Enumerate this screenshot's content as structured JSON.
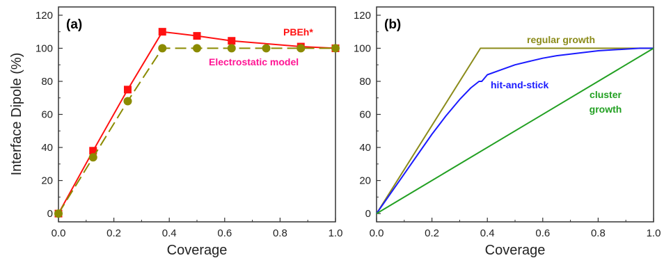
{
  "chart_data": [
    {
      "type": "line",
      "panel_label": "(a)",
      "xlabel": "Coverage",
      "ylabel": "Interface Dipole (%)",
      "xlim": [
        0,
        1
      ],
      "ylim": [
        -5,
        125
      ],
      "xticks": [
        "0.0",
        "0.2",
        "0.4",
        "0.6",
        "0.8",
        "1.0"
      ],
      "yticks": [
        "0",
        "20",
        "40",
        "60",
        "80",
        "100",
        "120"
      ],
      "series": [
        {
          "name": "PBEh*",
          "color": "#ff1111",
          "marker": "square",
          "line": "solid",
          "x": [
            0.0,
            0.125,
            0.25,
            0.375,
            0.5,
            0.625,
            0.875,
            1.0
          ],
          "y": [
            0,
            38,
            75,
            110,
            107.5,
            104.5,
            101,
            100
          ]
        },
        {
          "name": "Electrostatic model",
          "color": "#8b8b00",
          "label_color": "#ff1493",
          "marker": "circle",
          "line": "dashed",
          "x": [
            0.0,
            0.125,
            0.25,
            0.375,
            0.5,
            0.625,
            0.75,
            0.875,
            1.0
          ],
          "y": [
            0,
            34,
            68,
            100,
            100,
            100,
            100,
            100,
            100
          ]
        }
      ]
    },
    {
      "type": "line",
      "panel_label": "(b)",
      "xlabel": "Coverage",
      "ylabel": "",
      "xlim": [
        0,
        1
      ],
      "ylim": [
        -5,
        125
      ],
      "xticks": [
        "0.0",
        "0.2",
        "0.4",
        "0.6",
        "0.8",
        "1.0"
      ],
      "yticks": [
        "0",
        "20",
        "40",
        "60",
        "80",
        "100",
        "120"
      ],
      "series": [
        {
          "name": "regular growth",
          "color": "#8b8b1a",
          "x": [
            0.0,
            0.375,
            1.0
          ],
          "y": [
            0,
            100,
            100
          ]
        },
        {
          "name": "hit-and-stick",
          "color": "#1a1aff",
          "x": [
            0.0,
            0.05,
            0.1,
            0.15,
            0.2,
            0.25,
            0.3,
            0.34,
            0.37,
            0.38,
            0.4,
            0.45,
            0.5,
            0.55,
            0.6,
            0.65,
            0.7,
            0.75,
            0.8,
            0.85,
            0.9,
            0.95,
            1.0
          ],
          "y": [
            0,
            12,
            24,
            36,
            48,
            59,
            69,
            76,
            80,
            80,
            84,
            87,
            90,
            92,
            94,
            95.5,
            96.5,
            97.5,
            98.5,
            99,
            99.5,
            100,
            100
          ]
        },
        {
          "name": "cluster growth",
          "color": "#22a022",
          "x": [
            0.0,
            1.0
          ],
          "y": [
            0,
            100
          ]
        }
      ]
    }
  ]
}
